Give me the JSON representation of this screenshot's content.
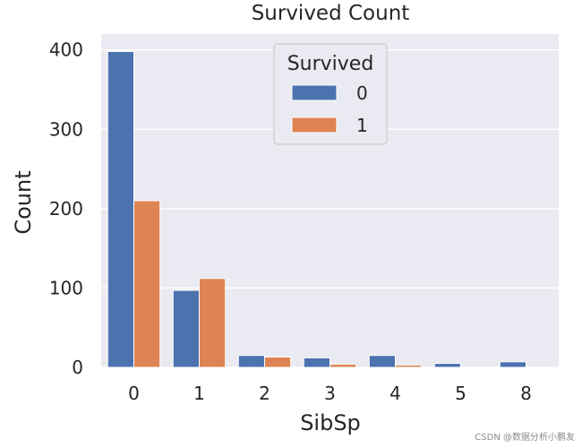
{
  "chart_data": {
    "type": "bar",
    "title": "Survived Count",
    "xlabel": "SibSp",
    "ylabel": "Count",
    "categories": [
      "0",
      "1",
      "2",
      "3",
      "4",
      "5",
      "8"
    ],
    "series": [
      {
        "name": "0",
        "color": "#4c72b0",
        "values": [
          398,
          97,
          15,
          12,
          15,
          5,
          7
        ]
      },
      {
        "name": "1",
        "color": "#dd8452",
        "values": [
          210,
          112,
          13,
          4,
          3,
          0,
          0
        ]
      }
    ],
    "ylim": [
      0,
      420
    ],
    "yticks": [
      0,
      100,
      200,
      300,
      400
    ],
    "grid": true,
    "legend": {
      "title": "Survived",
      "placement": "top-center"
    },
    "background": "#eaeaf2"
  },
  "watermark": "CSDN @数据分析小鹏友"
}
